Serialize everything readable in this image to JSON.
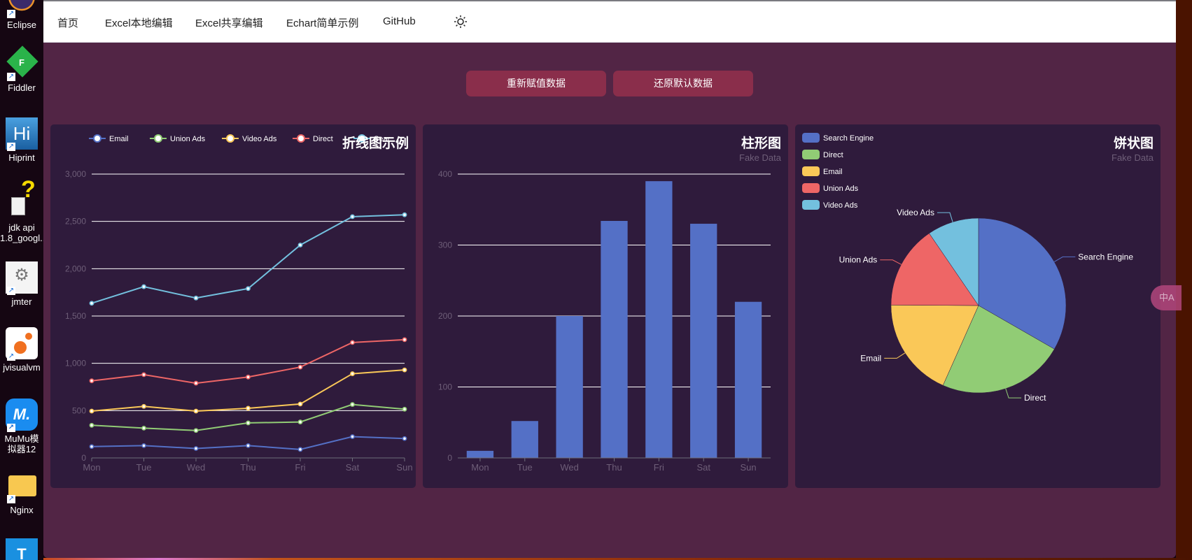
{
  "desktop": {
    "icons": [
      {
        "label": "Eclipse",
        "name": "eclipse"
      },
      {
        "label": "Fiddler",
        "name": "fiddler"
      },
      {
        "label": "Hiprint",
        "name": "hiprint"
      },
      {
        "label": "jdk api 1.8_googl...",
        "name": "jdk-api"
      },
      {
        "label": "jmter",
        "name": "jmter"
      },
      {
        "label": "jvisualvm",
        "name": "jvisualvm"
      },
      {
        "label": "MuMu模拟器12",
        "name": "mumu"
      },
      {
        "label": "Nginx",
        "name": "nginx"
      }
    ]
  },
  "nav": {
    "items": [
      {
        "label": "首页"
      },
      {
        "label": "Excel本地编辑"
      },
      {
        "label": "Excel共享编辑"
      },
      {
        "label": "Echart简单示例"
      },
      {
        "label": "GitHub"
      }
    ],
    "theme_icon": "sun-icon"
  },
  "actions": {
    "reassign_label": "重新赋值数据",
    "restore_label": "还原默认数据"
  },
  "colors": {
    "page_bg": "#522545",
    "card_bg": "#2f1b3c",
    "button_bg": "#8a2e4b",
    "palette": [
      "#5470c6",
      "#91cc75",
      "#fac858",
      "#ee6666",
      "#73c0de"
    ]
  },
  "translate_button": {
    "label": "中A"
  },
  "chart_data": [
    {
      "type": "line",
      "title": "折线图示例",
      "stacked": true,
      "categories": [
        "Mon",
        "Tue",
        "Wed",
        "Thu",
        "Fri",
        "Sat",
        "Sun"
      ],
      "legend": [
        "Email",
        "Union Ads",
        "Video Ads",
        "Direct",
        "Search Engine"
      ],
      "legend_visible_text": [
        "Email",
        "Union Ads",
        "Video Ads",
        "Direct",
        "Sear"
      ],
      "series": [
        {
          "name": "Email",
          "color": "#5470c6",
          "cumulative": [
            120,
            130,
            100,
            130,
            90,
            225,
            205
          ]
        },
        {
          "name": "Union Ads",
          "color": "#91cc75",
          "cumulative": [
            345,
            315,
            290,
            370,
            380,
            565,
            515
          ]
        },
        {
          "name": "Video Ads",
          "color": "#fac858",
          "cumulative": [
            495,
            545,
            495,
            525,
            570,
            890,
            930
          ]
        },
        {
          "name": "Direct",
          "color": "#ee6666",
          "cumulative": [
            815,
            880,
            790,
            855,
            960,
            1220,
            1250
          ]
        },
        {
          "name": "Search Engine",
          "color": "#73c0de",
          "cumulative": [
            1635,
            1810,
            1690,
            1790,
            2250,
            2550,
            2570
          ]
        }
      ],
      "yticks": [
        "0",
        "500",
        "1,000",
        "1,500",
        "2,000",
        "2,500",
        "3,000"
      ],
      "ylim": [
        0,
        3000
      ],
      "grid": true
    },
    {
      "type": "bar",
      "title": "柱形图",
      "subtitle": "Fake Data",
      "categories": [
        "Mon",
        "Tue",
        "Wed",
        "Thu",
        "Fri",
        "Sat",
        "Sun"
      ],
      "values": [
        10,
        52,
        200,
        334,
        390,
        330,
        220
      ],
      "color": "#5470c6",
      "yticks": [
        "0",
        "100",
        "200",
        "300",
        "400"
      ],
      "ylim": [
        0,
        400
      ],
      "grid": true
    },
    {
      "type": "pie",
      "title": "饼状图",
      "subtitle": "Fake Data",
      "legend_position": "top-left",
      "slices": [
        {
          "name": "Search Engine",
          "value": 1048,
          "color": "#5470c6"
        },
        {
          "name": "Direct",
          "value": 735,
          "color": "#91cc75"
        },
        {
          "name": "Email",
          "value": 580,
          "color": "#fac858"
        },
        {
          "name": "Union Ads",
          "value": 484,
          "color": "#ee6666"
        },
        {
          "name": "Video Ads",
          "value": 300,
          "color": "#73c0de"
        }
      ]
    }
  ]
}
